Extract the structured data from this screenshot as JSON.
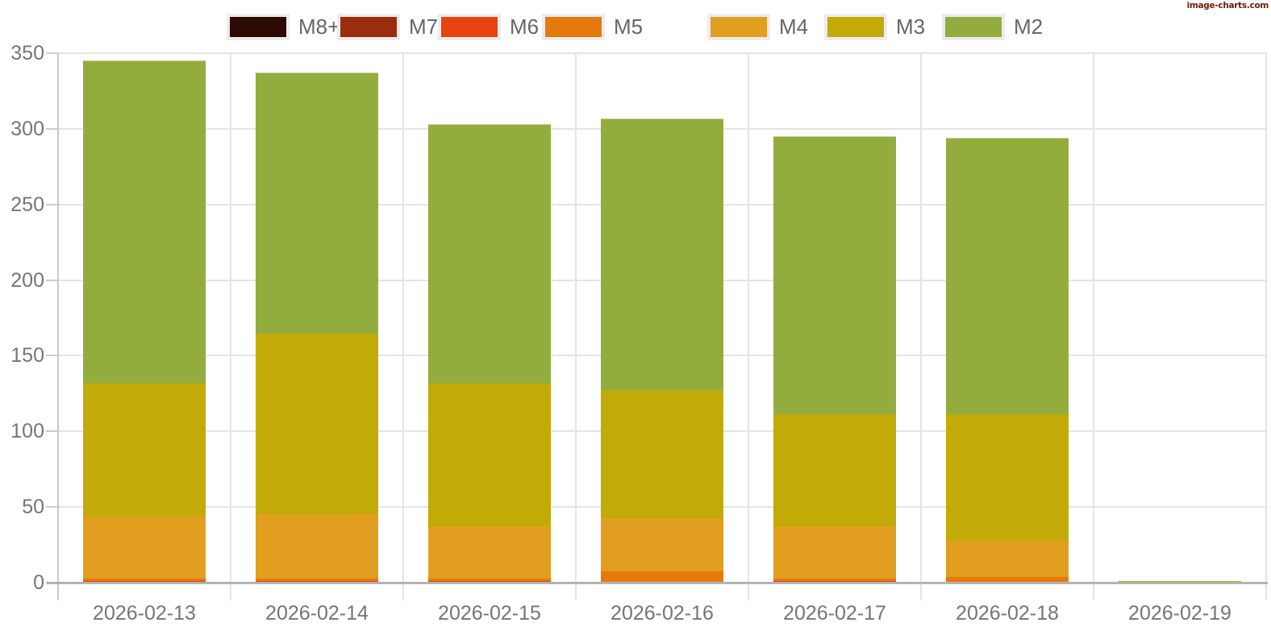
{
  "watermark": "image-charts.com",
  "legend": {
    "position": "top",
    "items": [
      "M8+",
      "M7",
      "M6",
      "M5",
      "M4",
      "M3",
      "M2"
    ]
  },
  "chart_data": {
    "type": "bar",
    "stacked": true,
    "title": "",
    "xlabel": "",
    "ylabel": "",
    "categories": [
      "2026-02-13",
      "2026-02-14",
      "2026-02-15",
      "2026-02-16",
      "2026-02-17",
      "2026-02-18",
      "2026-02-19"
    ],
    "series": [
      {
        "name": "M8+",
        "color": "#2e0b02",
        "values": [
          0,
          0,
          0,
          0,
          0,
          0,
          0
        ]
      },
      {
        "name": "M7",
        "color": "#9c2c0e",
        "values": [
          0,
          0,
          0,
          0,
          0,
          0,
          0
        ]
      },
      {
        "name": "M6",
        "color": "#e8430f",
        "values": [
          1,
          1,
          1,
          1,
          1,
          1,
          0
        ]
      },
      {
        "name": "M5",
        "color": "#e5790d",
        "values": [
          2,
          2,
          2,
          7,
          2,
          3,
          0
        ]
      },
      {
        "name": "M4",
        "color": "#e29e1f",
        "values": [
          41,
          43,
          35,
          35,
          35,
          24,
          0
        ]
      },
      {
        "name": "M3",
        "color": "#c2ab07",
        "values": [
          88,
          119,
          94,
          85,
          74,
          84,
          1
        ]
      },
      {
        "name": "M2",
        "color": "#93ac3e",
        "values": [
          213,
          172,
          171,
          179,
          183,
          182,
          0
        ]
      }
    ],
    "totals": [
      345,
      337,
      303,
      307,
      295,
      294,
      1
    ],
    "ylim": [
      0,
      350
    ],
    "y_ticks": [
      0,
      50,
      100,
      150,
      200,
      250,
      300,
      350
    ],
    "grid": true,
    "legend_position": "top"
  },
  "colors": {
    "background": "#ffffff",
    "gridline": "#e4e4e4",
    "axis_line": "#c9c9c9",
    "baseline": "#b3b3b3",
    "axis_text": "#757575",
    "legend_text": "#666666",
    "watermark_text": "#6e1c08"
  }
}
